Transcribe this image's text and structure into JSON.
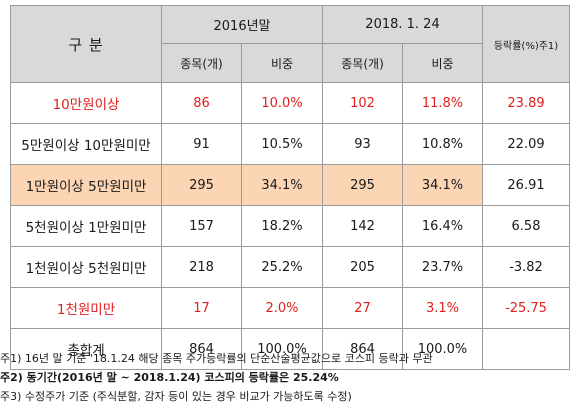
{
  "table": {
    "header": {
      "category": "구 분",
      "period1": "2016년말",
      "period2": "2018. 1. 24",
      "rate": "등락률(%)주1)",
      "count_label": "종목(개)",
      "weight_label": "비중"
    },
    "rows": [
      {
        "category": "10만원이상",
        "count1": "86",
        "weight1": "10.0%",
        "count2": "102",
        "weight2": "11.8%",
        "rate": "23.89",
        "highlight_color": "red"
      },
      {
        "category": "5만원이상 10만원미만",
        "count1": "91",
        "weight1": "10.5%",
        "count2": "93",
        "weight2": "10.8%",
        "rate": "22.09"
      },
      {
        "category": "1만원이상 5만원미만",
        "count1": "295",
        "weight1": "34.1%",
        "count2": "295",
        "weight2": "34.1%",
        "rate": "26.91",
        "cell_fill": "#fcd5b4"
      },
      {
        "category": "5천원이상 1만원미만",
        "count1": "157",
        "weight1": "18.2%",
        "count2": "142",
        "weight2": "16.4%",
        "rate": "6.58"
      },
      {
        "category": "1천원이상 5천원미만",
        "count1": "218",
        "weight1": "25.2%",
        "count2": "205",
        "weight2": "23.7%",
        "rate": "-3.82"
      },
      {
        "category": "1천원미만",
        "count1": "17",
        "weight1": "2.0%",
        "count2": "27",
        "weight2": "3.1%",
        "rate": "-25.75",
        "highlight_color": "red"
      },
      {
        "category": "총합계",
        "count1": "864",
        "weight1": "100.0%",
        "count2": "864",
        "weight2": "100.0%",
        "rate": ""
      }
    ]
  },
  "notes": [
    "주1) 16년 말 기준 '18.1.24 해당 종목 주가등락률의 단순산술평균값으로 코스피 등락과 무관",
    "주2) 동기간(2016년 말 ~ 2018.1.24) 코스피의 등락률은 25.24%",
    "주3) 수정주가 기준 (주식분할, 감자 등이 있는 경우 비교가 가능하도록 수정)"
  ],
  "colors": {
    "header_bg": "#d9d9d9",
    "red_text": "#e02020",
    "highlight_fill": "#fcd5b4",
    "border": "#9a9a9a"
  }
}
